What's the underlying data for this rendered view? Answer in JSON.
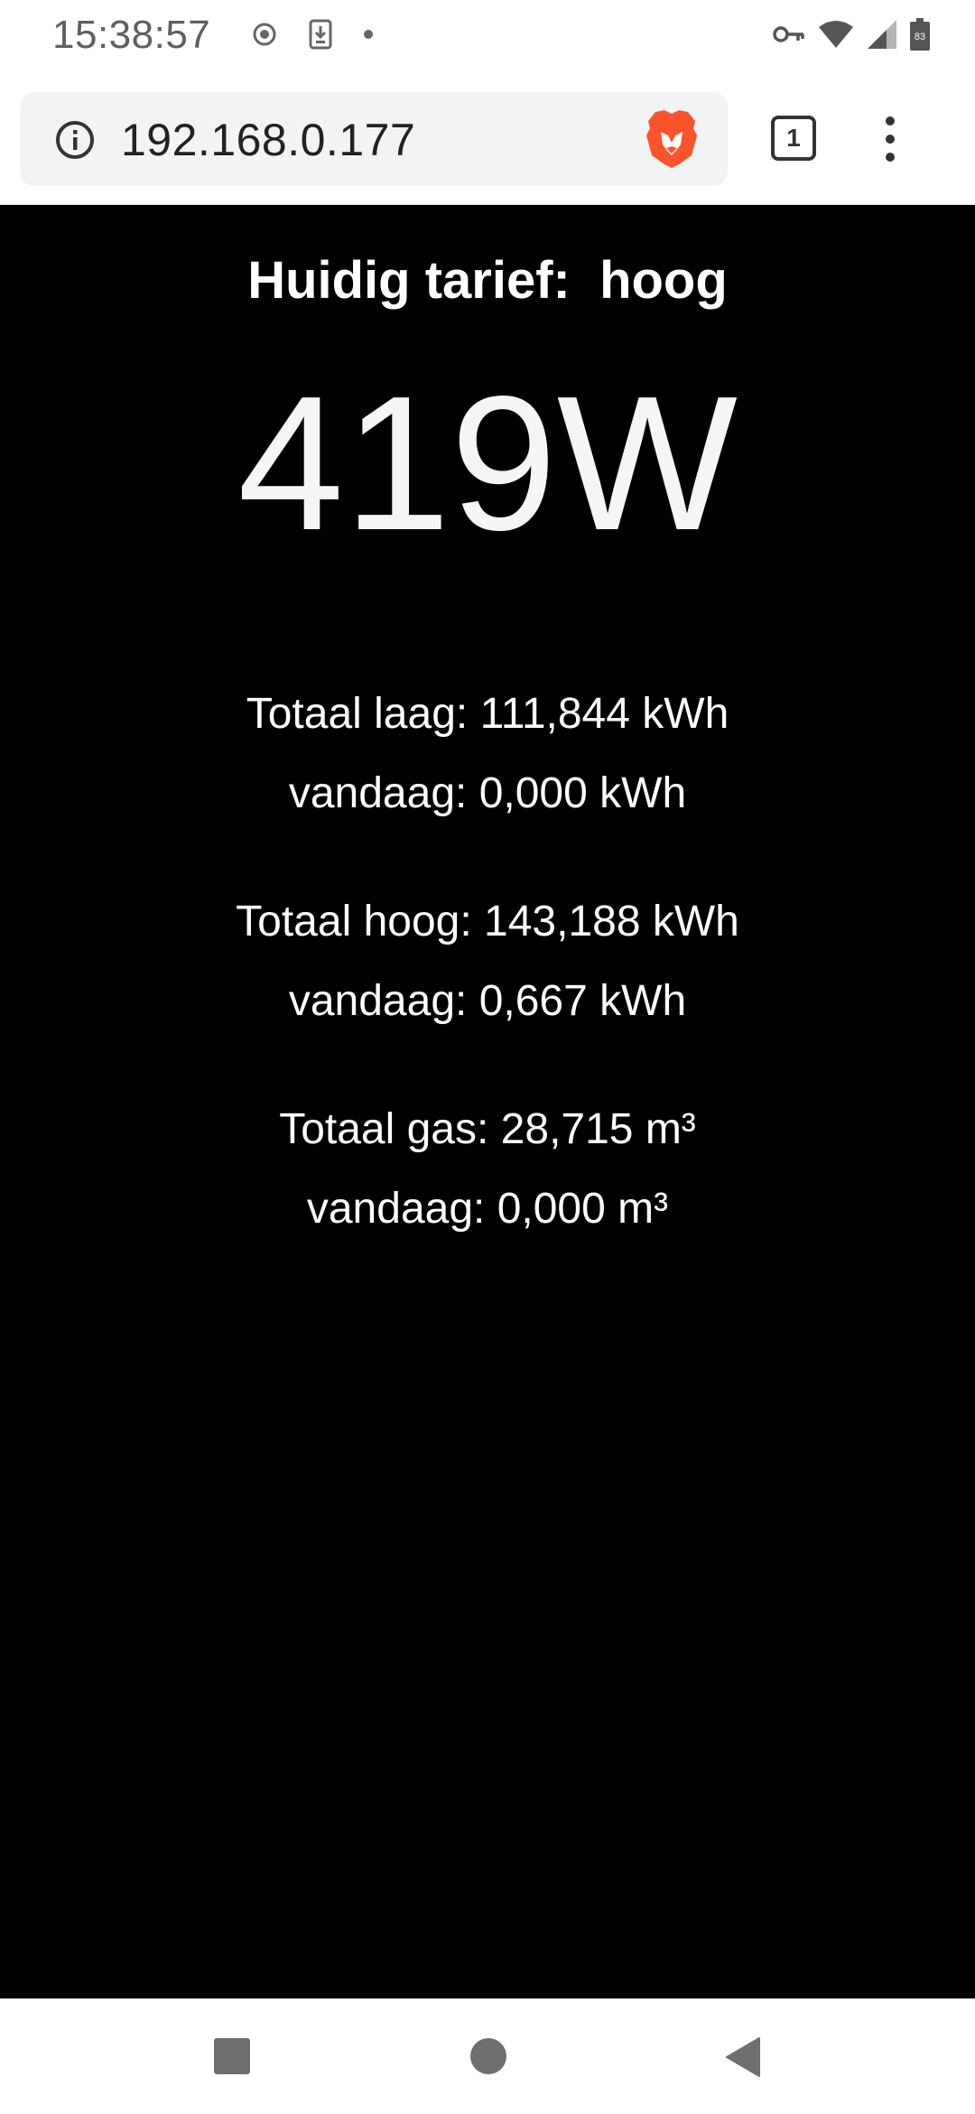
{
  "status_bar": {
    "time": "15:38:57",
    "icons_left": [
      "radio-icon",
      "download-icon",
      "dot-icon"
    ],
    "icons_right": [
      "vpn-key-icon",
      "wifi-icon",
      "cell-signal-icon",
      "battery-icon"
    ],
    "battery_level": "83"
  },
  "browser": {
    "url": "192.168.0.177",
    "tab_count": "1",
    "brand_icon": "brave-lion-icon"
  },
  "dashboard": {
    "tariff_label": "Huidig tarief:  hoog",
    "power": "419W",
    "low_total": "Totaal laag: 111,844 kWh",
    "low_today": "vandaag: 0,000 kWh",
    "high_total": "Totaal hoog: 143,188 kWh",
    "high_today": "vandaag: 0,667 kWh",
    "gas_total": "Totaal gas: 28,715 m³",
    "gas_today": "vandaag: 0,000 m³"
  },
  "nav": {
    "buttons": [
      "recents-button",
      "home-button",
      "back-button"
    ]
  },
  "colors": {
    "background": "#000000",
    "text": "#ffffff",
    "brave_orange": "#fb542b"
  }
}
